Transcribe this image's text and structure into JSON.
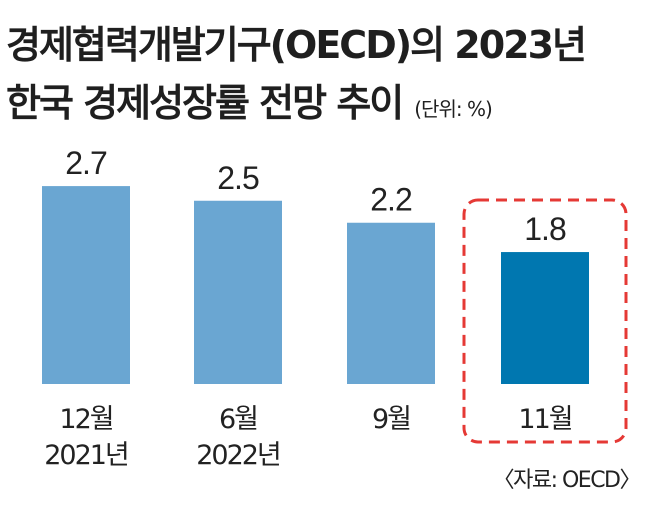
{
  "title_line1": "경제협력개발기구(OECD)의 2023년",
  "title_line2": "한국 경제성장률 전망 추이",
  "unit_note": "(단위: %)",
  "source_note": "〈자료: OECD〉",
  "colors": {
    "bar": "#6aa6d2",
    "highlight_bar": "#0077b0",
    "highlight_border": "#e53935"
  },
  "chart_data": {
    "type": "bar",
    "categories": [
      [
        "12월",
        "2021년"
      ],
      [
        "6월",
        "2022년"
      ],
      [
        "9월"
      ],
      [
        "11월"
      ]
    ],
    "values": [
      2.7,
      2.5,
      2.2,
      1.8
    ],
    "value_labels": [
      "2.7",
      "2.5",
      "2.2",
      "1.8"
    ],
    "highlight_index": 3
  }
}
